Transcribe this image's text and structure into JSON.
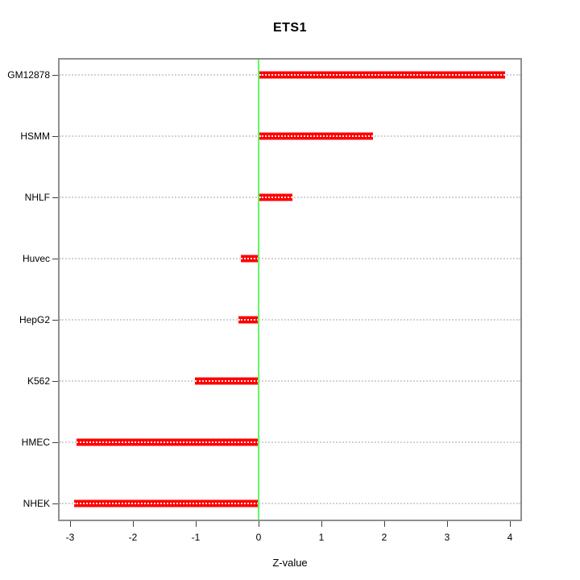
{
  "chart_data": {
    "type": "bar",
    "orientation": "horizontal",
    "title": "ETS1",
    "xlabel": "Z-value",
    "ylabel": "",
    "categories": [
      "GM12878",
      "HSMM",
      "NHLF",
      "Huvec",
      "HepG2",
      "K562",
      "HMEC",
      "NHEK"
    ],
    "values": [
      3.91,
      1.81,
      0.53,
      -0.28,
      -0.32,
      -1.01,
      -2.9,
      -2.93
    ],
    "xlim": [
      -3.2,
      4.2
    ],
    "xticks": [
      -3,
      -2,
      -1,
      0,
      1,
      2,
      3,
      4
    ],
    "zero_reference_line": 0,
    "grid": "horizontal dotted line per category",
    "legend": "none",
    "colors": {
      "bar_fill": "#ff0000",
      "bar_edge": "#ff8080",
      "bar_inner_dotted_line": "#ffffff",
      "zero_line": "#63f763",
      "grid_line": "#d2d2d2",
      "box_border": "#8f8f8f",
      "axis_tick": "#404040",
      "text": "#000000"
    }
  }
}
